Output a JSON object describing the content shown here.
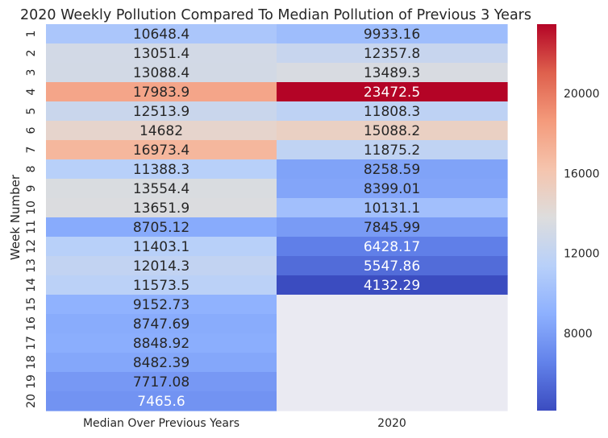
{
  "chart_data": {
    "type": "heatmap",
    "title": "2020 Weekly Pollution Compared To Median Pollution of Previous 3 Years",
    "xlabel": "",
    "ylabel": "Week Number",
    "columns": [
      "Median Over Previous Years",
      "2020"
    ],
    "rows": [
      "1",
      "2",
      "3",
      "4",
      "5",
      "6",
      "7",
      "8",
      "9",
      "10",
      "11",
      "12",
      "13",
      "14",
      "15",
      "16",
      "17",
      "18",
      "19",
      "20"
    ],
    "values": [
      [
        10648.4,
        9933.16
      ],
      [
        13051.4,
        12357.8
      ],
      [
        13088.4,
        13489.3
      ],
      [
        17983.9,
        23472.5
      ],
      [
        12513.9,
        11808.3
      ],
      [
        14682,
        15088.2
      ],
      [
        16973.4,
        11875.2
      ],
      [
        11388.3,
        8258.59
      ],
      [
        13554.4,
        8399.01
      ],
      [
        13651.9,
        10131.1
      ],
      [
        8705.12,
        7845.99
      ],
      [
        11403.1,
        6428.17
      ],
      [
        12014.3,
        5547.86
      ],
      [
        11573.5,
        4132.29
      ],
      [
        9152.73,
        null
      ],
      [
        8747.69,
        null
      ],
      [
        8848.92,
        null
      ],
      [
        8482.39,
        null
      ],
      [
        7717.08,
        null
      ],
      [
        7465.6,
        null
      ]
    ],
    "labels": [
      [
        "10648.4",
        "9933.16"
      ],
      [
        "13051.4",
        "12357.8"
      ],
      [
        "13088.4",
        "13489.3"
      ],
      [
        "17983.9",
        "23472.5"
      ],
      [
        "12513.9",
        "11808.3"
      ],
      [
        "14682",
        "15088.2"
      ],
      [
        "16973.4",
        "11875.2"
      ],
      [
        "11388.3",
        "8258.59"
      ],
      [
        "13554.4",
        "8399.01"
      ],
      [
        "13651.9",
        "10131.1"
      ],
      [
        "8705.12",
        "7845.99"
      ],
      [
        "11403.1",
        "6428.17"
      ],
      [
        "12014.3",
        "5547.86"
      ],
      [
        "11573.5",
        "4132.29"
      ],
      [
        "9152.73",
        ""
      ],
      [
        "8747.69",
        ""
      ],
      [
        "8848.92",
        ""
      ],
      [
        "8482.39",
        ""
      ],
      [
        "7717.08",
        ""
      ],
      [
        "7465.6",
        ""
      ]
    ],
    "color_range": [
      4132.29,
      23472.5
    ],
    "colormap": "coolwarm",
    "missing_color": "#eaeaf2",
    "colorbar_ticks": [
      "8000",
      "12000",
      "16000",
      "20000"
    ],
    "colorbar_tick_values": [
      8000,
      12000,
      16000,
      20000
    ],
    "grid": false
  }
}
